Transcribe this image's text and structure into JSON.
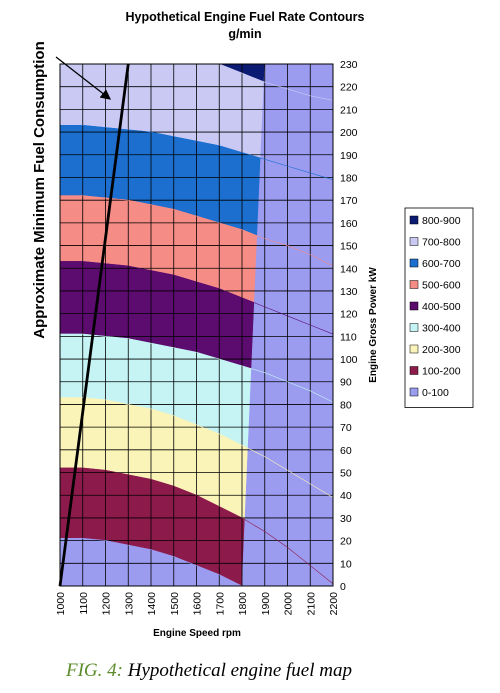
{
  "chart_data": {
    "type": "contour",
    "title": "Hypothetical Engine Fuel Rate Contours",
    "subtitle": "g/min",
    "xlabel": "Engine Speed rpm",
    "ylabel": "Engine Gross Power kW",
    "x": [
      1000,
      1100,
      1200,
      1300,
      1400,
      1500,
      1600,
      1700,
      1800,
      1900,
      2000,
      2100,
      2200
    ],
    "xlim": [
      1000,
      2200
    ],
    "xticks": [
      1000,
      1100,
      1200,
      1300,
      1400,
      1500,
      1600,
      1700,
      1800,
      1900,
      2000,
      2100,
      2200
    ],
    "ylim": [
      0,
      230
    ],
    "yticks": [
      0,
      10,
      20,
      30,
      40,
      50,
      60,
      70,
      80,
      90,
      100,
      110,
      120,
      130,
      140,
      150,
      160,
      170,
      180,
      190,
      200,
      210,
      220,
      230
    ],
    "grid": true,
    "legend_position": "right",
    "levels": [
      {
        "name": "800-900",
        "color": "#0b1a72"
      },
      {
        "name": "700-800",
        "color": "#c9c9f4",
        "upper": [
          null,
          null,
          null,
          null,
          null,
          null,
          null,
          230,
          226,
          222,
          219,
          216,
          214
        ]
      },
      {
        "name": "600-700",
        "color": "#1c6fce",
        "upper": [
          203,
          203,
          202,
          201,
          200,
          198,
          196,
          194,
          191,
          188,
          185,
          182,
          179
        ]
      },
      {
        "name": "500-600",
        "color": "#f58c86",
        "upper": [
          172,
          172,
          171,
          170,
          168,
          166,
          163,
          160,
          157,
          153,
          150,
          146,
          141
        ]
      },
      {
        "name": "400-500",
        "color": "#5b0c6e",
        "upper": [
          143,
          143,
          142,
          141,
          139,
          137,
          134,
          131,
          127,
          123,
          119,
          115,
          111
        ]
      },
      {
        "name": "300-400",
        "color": "#c6f4f4",
        "upper": [
          111,
          111,
          110,
          109,
          107,
          105,
          103,
          100,
          97,
          94,
          90,
          86,
          81
        ]
      },
      {
        "name": "200-300",
        "color": "#fbf4b9",
        "upper": [
          83,
          83,
          82,
          80,
          78,
          75,
          71,
          67,
          62,
          57,
          51,
          45,
          39
        ]
      },
      {
        "name": "100-200",
        "color": "#8c1b4c",
        "upper": [
          52,
          52,
          51,
          49,
          47,
          44,
          40,
          35,
          30,
          24,
          17,
          9,
          1
        ]
      },
      {
        "name": "0-100",
        "color": "#9b9bf0",
        "upper": [
          21,
          21,
          20,
          18,
          16,
          13,
          9,
          5,
          0,
          null,
          null,
          null,
          null
        ]
      }
    ],
    "annotation": {
      "text": "Approximate Minimum Fuel Consumption",
      "x": [
        1000,
        1300
      ],
      "y": [
        0,
        230
      ]
    }
  },
  "caption": {
    "label": "FIG. 4:",
    "text": "Hypothetical engine fuel map"
  }
}
